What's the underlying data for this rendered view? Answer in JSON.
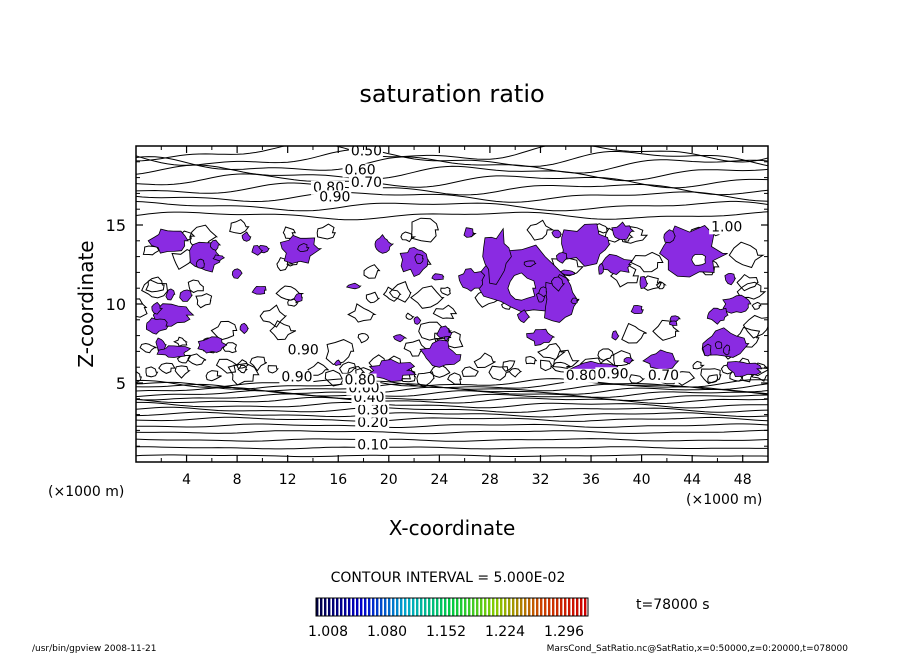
{
  "chart_data": {
    "type": "contour",
    "title": "saturation ratio",
    "xlabel": "X-coordinate",
    "ylabel": "Z-coordinate",
    "x_unit": "(×1000 m)",
    "y_unit": "(×1000 m)",
    "xlim": [
      0,
      50
    ],
    "ylim": [
      0,
      20
    ],
    "x_ticks": [
      4,
      8,
      12,
      16,
      20,
      24,
      28,
      32,
      36,
      40,
      44,
      48
    ],
    "y_ticks": [
      5,
      10,
      15
    ],
    "contour_labels": [
      {
        "text": "0.10",
        "x": 17.5,
        "z": 0.8
      },
      {
        "text": "0.20",
        "x": 17.5,
        "z": 2.2
      },
      {
        "text": "0.30",
        "x": 17.5,
        "z": 3.0
      },
      {
        "text": "0.40",
        "x": 17.2,
        "z": 3.8
      },
      {
        "text": "0.60",
        "x": 16.8,
        "z": 4.4
      },
      {
        "text": "0.80",
        "x": 16.5,
        "z": 4.9
      },
      {
        "text": "0.90",
        "x": 12.0,
        "z": 6.8
      },
      {
        "text": "0.90",
        "x": 11.5,
        "z": 5.1
      },
      {
        "text": "0.80",
        "x": 34.0,
        "z": 5.2
      },
      {
        "text": "0.90",
        "x": 36.5,
        "z": 5.3
      },
      {
        "text": "0.70",
        "x": 40.5,
        "z": 5.2
      },
      {
        "text": "1.00",
        "x": 45.5,
        "z": 14.6
      },
      {
        "text": "0.50",
        "x": 17.0,
        "z": 19.4
      },
      {
        "text": "0.60",
        "x": 16.5,
        "z": 18.2
      },
      {
        "text": "0.70",
        "x": 17.0,
        "z": 17.4
      },
      {
        "text": "0.80",
        "x": 14.0,
        "z": 17.1
      },
      {
        "text": "0.90",
        "x": 14.5,
        "z": 16.5
      }
    ],
    "supersaturated_color": "#8a2be2",
    "contour_interval_text": "CONTOUR INTERVAL = 5.000E-02",
    "colorbar": {
      "ticks": [
        "1.008",
        "1.080",
        "1.152",
        "1.224",
        "1.296"
      ],
      "colors": [
        "#000044",
        "#0000cc",
        "#00aacc",
        "#00cc44",
        "#88cc00",
        "#cc4400",
        "#cc0000"
      ]
    },
    "time_label": "t=78000 s"
  },
  "footer": {
    "left": "/usr/bin/gpview   2008-11-21",
    "right": "MarsCond_SatRatio.nc@SatRatio,x=0:50000,z=0:20000,t=078000"
  }
}
